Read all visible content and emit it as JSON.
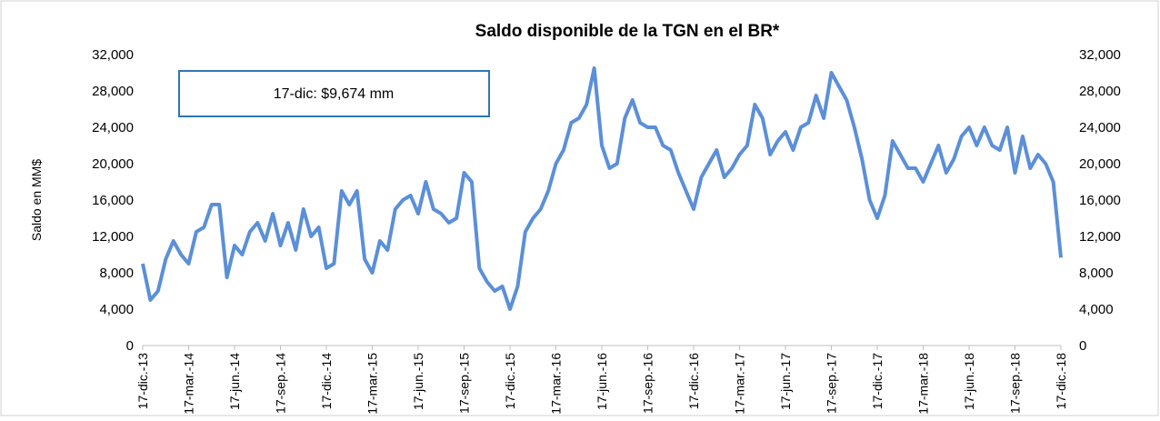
{
  "chart_data": {
    "type": "line",
    "title": "Saldo disponible de la TGN en el BR*",
    "y_label": "Saldo en MM$",
    "annotation": "17-dic: $9,674 mm",
    "categories": [
      "17-dic.-13",
      null,
      null,
      null,
      null,
      null,
      "17-mar.-14",
      null,
      null,
      null,
      null,
      null,
      "17-jun.-14",
      null,
      null,
      null,
      null,
      null,
      "17-sep.-14",
      null,
      null,
      null,
      null,
      null,
      "17-dic.-14",
      null,
      null,
      null,
      null,
      null,
      "17-mar.-15",
      null,
      null,
      null,
      null,
      null,
      "17-jun.-15",
      null,
      null,
      null,
      null,
      null,
      "17-sep.-15",
      null,
      null,
      null,
      null,
      null,
      "17-dic.-15",
      null,
      null,
      null,
      null,
      null,
      "17-mar.-16",
      null,
      null,
      null,
      null,
      null,
      "17-jun.-16",
      null,
      null,
      null,
      null,
      null,
      "17-sep.-16",
      null,
      null,
      null,
      null,
      null,
      "17-dic.-16",
      null,
      null,
      null,
      null,
      null,
      "17-mar.-17",
      null,
      null,
      null,
      null,
      null,
      "17-jun.-17",
      null,
      null,
      null,
      null,
      null,
      "17-sep.-17",
      null,
      null,
      null,
      null,
      null,
      "17-dic.-17",
      null,
      null,
      null,
      null,
      null,
      "17-mar.-18",
      null,
      null,
      null,
      null,
      null,
      "17-jun.-18",
      null,
      null,
      null,
      null,
      null,
      "17-sep.-18",
      null,
      null,
      null,
      null,
      null,
      "17-dic.-18"
    ],
    "series": [
      {
        "name": "Saldo",
        "color": "#5b8fd9",
        "values": [
          9000,
          5000,
          6000,
          9500,
          11500,
          10000,
          9000,
          12500,
          13000,
          15500,
          15500,
          7500,
          11000,
          10000,
          12500,
          13500,
          11500,
          14500,
          11000,
          13500,
          10500,
          15000,
          12000,
          13000,
          8500,
          9000,
          17000,
          15500,
          17000,
          9500,
          8000,
          11500,
          10500,
          15000,
          16000,
          16500,
          14500,
          18000,
          15000,
          14500,
          13500,
          14000,
          19000,
          18000,
          8500,
          7000,
          6000,
          6500,
          4000,
          6500,
          12500,
          14000,
          15000,
          17000,
          20000,
          21500,
          24500,
          25000,
          26500,
          30500,
          22000,
          19500,
          20000,
          25000,
          27000,
          24500,
          24000,
          24000,
          22000,
          21500,
          19000,
          17000,
          15000,
          18500,
          20000,
          21500,
          18500,
          19500,
          21000,
          22000,
          26500,
          25000,
          21000,
          22500,
          23500,
          21500,
          24000,
          24500,
          27500,
          25000,
          30000,
          28500,
          27000,
          24000,
          20500,
          16000,
          14000,
          16500,
          22500,
          21000,
          19500,
          19500,
          18000,
          20000,
          22000,
          19000,
          20500,
          23000,
          24000,
          22000,
          24000,
          22000,
          21500,
          24000,
          19000,
          23000,
          19500,
          21000,
          20000,
          18000,
          9674
        ]
      }
    ],
    "ylim": [
      0,
      32000
    ],
    "yticks": [
      0,
      {
        "value": 4000,
        "label": "4,000"
      },
      {
        "value": 8000,
        "label": "8,000"
      },
      {
        "value": 12000,
        "label": "12,000"
      },
      {
        "value": 16000,
        "label": "16,000"
      },
      {
        "value": 20000,
        "label": "20,000"
      },
      {
        "value": 24000,
        "label": "24,000"
      },
      {
        "value": 28000,
        "label": "28,000"
      },
      {
        "value": 32000,
        "label": "32,000"
      }
    ],
    "y2lim": [
      0,
      32000
    ],
    "y2ticks": [
      0,
      {
        "value": 4000,
        "label": "4,000"
      },
      {
        "value": 8000,
        "label": "8,000"
      },
      {
        "value": 12000,
        "label": "12,000"
      },
      {
        "value": 16000,
        "label": "16,000"
      },
      {
        "value": 20000,
        "label": "20,000"
      },
      {
        "value": 24000,
        "label": "24,000"
      },
      {
        "value": 28000,
        "label": "28,000"
      },
      {
        "value": 32000,
        "label": "32,000"
      }
    ],
    "grid": false
  }
}
